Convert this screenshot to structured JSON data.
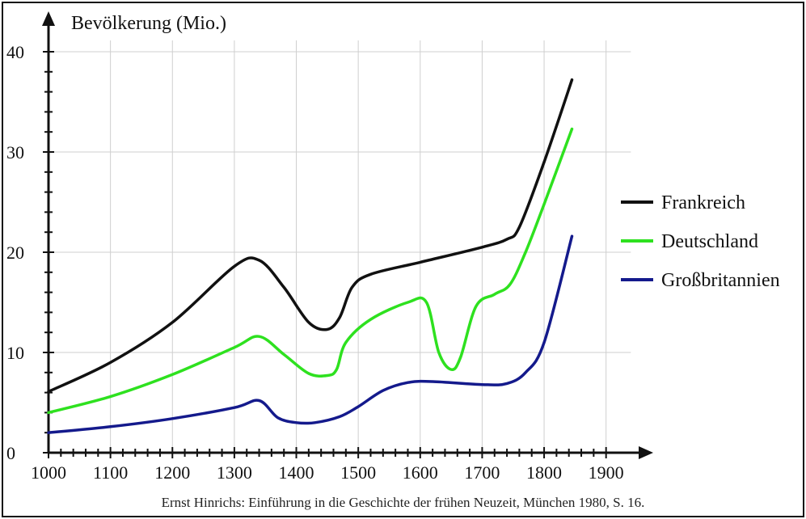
{
  "chart_data": {
    "type": "line",
    "ylabel": "Bevölkerung (Mio.)",
    "xlabel": "",
    "xlim": [
      1000,
      1950
    ],
    "ylim": [
      0,
      40
    ],
    "x_ticks": [
      1000,
      1100,
      1200,
      1300,
      1400,
      1500,
      1600,
      1700,
      1800,
      1900
    ],
    "x_tick_labels": [
      "1000",
      "1100",
      "1200",
      "1300",
      "1400",
      "1500",
      "1600",
      "1700",
      "1800",
      "1900"
    ],
    "y_ticks": [
      0,
      10,
      20,
      30,
      40
    ],
    "y_tick_labels": [
      "0",
      "10",
      "20",
      "30",
      "40"
    ],
    "grid": true,
    "legend_position": "right",
    "series": [
      {
        "name": "Frankreich",
        "color": "#111111",
        "points": [
          [
            1000,
            6.1
          ],
          [
            1100,
            9.0
          ],
          [
            1200,
            13.0
          ],
          [
            1300,
            18.6
          ],
          [
            1340,
            19.2
          ],
          [
            1380,
            16.5
          ],
          [
            1420,
            13.0
          ],
          [
            1450,
            12.3
          ],
          [
            1470,
            13.5
          ],
          [
            1490,
            16.5
          ],
          [
            1520,
            17.8
          ],
          [
            1600,
            19.0
          ],
          [
            1700,
            20.5
          ],
          [
            1740,
            21.3
          ],
          [
            1760,
            22.5
          ],
          [
            1800,
            29.0
          ],
          [
            1845,
            37.2
          ]
        ]
      },
      {
        "name": "Deutschland",
        "color": "#2ee11f",
        "points": [
          [
            1000,
            4.0
          ],
          [
            1100,
            5.6
          ],
          [
            1200,
            7.8
          ],
          [
            1300,
            10.5
          ],
          [
            1340,
            11.6
          ],
          [
            1380,
            9.8
          ],
          [
            1420,
            7.9
          ],
          [
            1450,
            7.7
          ],
          [
            1465,
            8.3
          ],
          [
            1480,
            11.0
          ],
          [
            1520,
            13.3
          ],
          [
            1580,
            15.0
          ],
          [
            1610,
            15.0
          ],
          [
            1630,
            10.0
          ],
          [
            1650,
            8.3
          ],
          [
            1665,
            9.5
          ],
          [
            1690,
            14.6
          ],
          [
            1720,
            15.8
          ],
          [
            1745,
            16.8
          ],
          [
            1770,
            20.0
          ],
          [
            1800,
            24.8
          ],
          [
            1845,
            32.3
          ]
        ]
      },
      {
        "name": "Großbritannien",
        "color": "#141a8c",
        "points": [
          [
            1000,
            2.0
          ],
          [
            1100,
            2.6
          ],
          [
            1200,
            3.4
          ],
          [
            1300,
            4.5
          ],
          [
            1340,
            5.2
          ],
          [
            1370,
            3.5
          ],
          [
            1400,
            3.0
          ],
          [
            1430,
            3.0
          ],
          [
            1470,
            3.6
          ],
          [
            1500,
            4.6
          ],
          [
            1540,
            6.2
          ],
          [
            1580,
            7.0
          ],
          [
            1620,
            7.1
          ],
          [
            1700,
            6.8
          ],
          [
            1740,
            6.9
          ],
          [
            1770,
            8.0
          ],
          [
            1800,
            11.0
          ],
          [
            1845,
            21.6
          ]
        ]
      }
    ]
  },
  "caption": "Ernst Hinrichs: Einführung in die Geschichte der frühen Neuzeit, München 1980, S. 16."
}
